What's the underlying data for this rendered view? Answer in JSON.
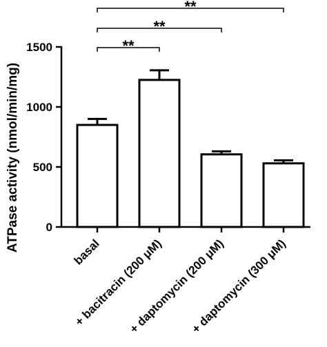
{
  "chart_data": {
    "type": "bar",
    "title": "",
    "xlabel": "",
    "ylabel": "ATPase activity (nmol/min/mg)",
    "ylim": [
      0,
      1500
    ],
    "yticks": [
      0,
      500,
      1000,
      1500
    ],
    "grid": false,
    "legend": "none",
    "bar_fill": "#ffffff",
    "bar_stroke": "#000000",
    "categories": [
      "basal",
      "+ bacitracin (200 μM)",
      "+ daptomycin (200 μM)",
      "+ daptomycin (300 μM)"
    ],
    "values": [
      850,
      1225,
      605,
      530
    ],
    "errors": [
      50,
      80,
      25,
      25
    ],
    "significance": [
      {
        "from": 0,
        "to": 1,
        "label": "**"
      },
      {
        "from": 0,
        "to": 2,
        "label": "**"
      },
      {
        "from": 0,
        "to": 3,
        "label": "**"
      }
    ]
  }
}
